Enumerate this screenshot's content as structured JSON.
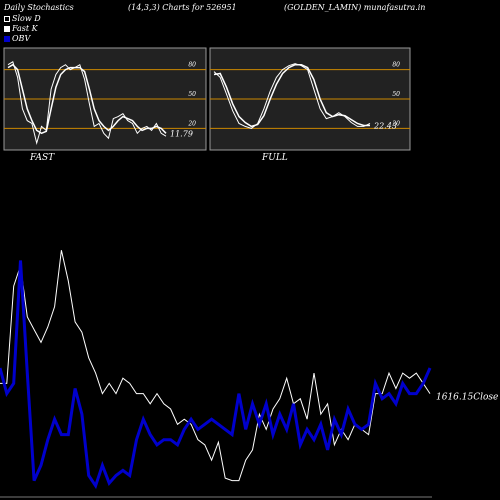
{
  "header": {
    "title": "Daily Stochastics",
    "params": "(14,3,3) Charts for 526951",
    "source": "(GOLDEN_LAMIN) munafasutra.in"
  },
  "legend": [
    {
      "label": "Slow D",
      "color": "#ffffff",
      "style": "outline"
    },
    {
      "label": "Fast K",
      "color": "#ffffff",
      "style": "filled"
    },
    {
      "label": "OBV",
      "color": "#0000cc",
      "style": "filled"
    }
  ],
  "colors": {
    "background": "#000000",
    "panel": "#222222",
    "panel_border": "#999999",
    "level_line": "#cc8800",
    "line": "#ffffff",
    "obv": "#0000cc"
  },
  "chart_data": [
    {
      "type": "line",
      "title": "FAST",
      "ylim": [
        0,
        100
      ],
      "levels": [
        20,
        50,
        80
      ],
      "yticks": [
        "80",
        "50",
        "20"
      ],
      "last_value_label": "11.79",
      "series": [
        {
          "name": "Fast K",
          "values": [
            85,
            88,
            72,
            40,
            28,
            25,
            5,
            22,
            18,
            60,
            75,
            82,
            85,
            80,
            82,
            85,
            70,
            45,
            22,
            25,
            15,
            10,
            30,
            32,
            35,
            28,
            25,
            15,
            20,
            22,
            18,
            25,
            15,
            12
          ]
        },
        {
          "name": "Slow D",
          "values": [
            82,
            85,
            80,
            60,
            40,
            28,
            18,
            15,
            17,
            40,
            62,
            75,
            80,
            82,
            82,
            82,
            78,
            60,
            40,
            28,
            22,
            18,
            22,
            28,
            32,
            30,
            28,
            22,
            18,
            20,
            20,
            22,
            20,
            15
          ]
        }
      ]
    },
    {
      "type": "line",
      "title": "FULL",
      "ylim": [
        0,
        100
      ],
      "levels": [
        20,
        50,
        80
      ],
      "yticks": [
        "80",
        "50",
        "20"
      ],
      "last_value_label": "22.43",
      "series": [
        {
          "name": "Fast K",
          "values": [
            78,
            72,
            55,
            38,
            25,
            22,
            20,
            25,
            40,
            58,
            72,
            80,
            84,
            86,
            84,
            80,
            60,
            40,
            30,
            32,
            36,
            32,
            26,
            22,
            22,
            25
          ]
        },
        {
          "name": "Slow D",
          "values": [
            75,
            76,
            62,
            45,
            32,
            26,
            22,
            24,
            33,
            50,
            65,
            76,
            82,
            85,
            85,
            82,
            70,
            50,
            36,
            32,
            34,
            33,
            29,
            25,
            23,
            23
          ]
        }
      ]
    },
    {
      "type": "line",
      "title": "",
      "last_value_label": "1616.15",
      "last_value_suffix": "Close",
      "series": [
        {
          "name": "Close",
          "color": "#ffffff",
          "values": [
            44,
            44,
            82,
            90,
            70,
            65,
            60,
            66,
            74,
            96,
            84,
            68,
            64,
            54,
            48,
            40,
            44,
            40,
            46,
            44,
            40,
            40,
            36,
            40,
            36,
            34,
            28,
            30,
            28,
            22,
            20,
            14,
            21,
            7,
            6,
            6,
            14,
            18,
            32,
            26,
            34,
            38,
            46,
            36,
            38,
            30,
            48,
            32,
            36,
            20,
            26,
            22,
            28,
            26,
            24,
            40,
            40,
            48,
            42,
            48,
            46,
            48,
            44,
            40
          ]
        },
        {
          "name": "OBV",
          "color": "#0000cc",
          "values": [
            50,
            40,
            44,
            92,
            48,
            6,
            12,
            22,
            30,
            24,
            24,
            42,
            32,
            8,
            4,
            12,
            5,
            8,
            10,
            8,
            22,
            30,
            24,
            20,
            22,
            22,
            20,
            26,
            30,
            26,
            28,
            30,
            28,
            26,
            24,
            40,
            26,
            36,
            28,
            36,
            24,
            32,
            26,
            36,
            20,
            26,
            22,
            28,
            18,
            30,
            24,
            34,
            28,
            26,
            28,
            44,
            38,
            40,
            36,
            44,
            40,
            40,
            44,
            50
          ]
        }
      ]
    }
  ]
}
